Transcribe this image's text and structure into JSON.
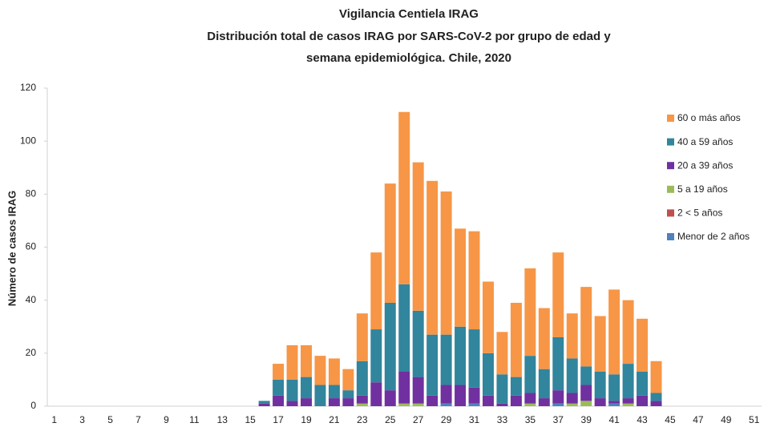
{
  "chart_data": {
    "type": "stacked_bar",
    "title_lines": [
      "Vigilancia Centiela IRAG",
      "Distribución total  de casos IRAG  por SARS-CoV-2 por grupo de edad y",
      "semana epidemiológica.  Chile, 2020"
    ],
    "y_label": "Número de casos IRAG",
    "categories": [
      "1",
      null,
      "3",
      null,
      "5",
      null,
      "7",
      null,
      "9",
      null,
      "11",
      null,
      "13",
      null,
      "15",
      null,
      "17",
      null,
      "19",
      null,
      "21",
      null,
      "23",
      null,
      "25",
      null,
      "27",
      null,
      "29",
      null,
      "31",
      null,
      "33",
      null,
      "35",
      null,
      "37",
      null,
      "39",
      null,
      "41",
      null,
      "43",
      null,
      "45",
      null,
      "47",
      null,
      "49",
      null,
      "51"
    ],
    "series": [
      {
        "name": "Menor de 2 años",
        "color": "#4f81bd",
        "values": [
          0,
          0,
          0,
          0,
          0,
          0,
          0,
          0,
          0,
          0,
          0,
          0,
          0,
          0,
          0,
          0,
          0,
          0,
          0,
          0,
          0,
          0,
          0,
          0,
          0,
          0,
          0,
          0,
          1,
          0,
          1,
          0,
          0,
          0,
          0,
          0,
          1,
          0,
          0,
          0,
          1,
          0,
          0,
          0,
          0,
          0,
          0,
          0,
          0,
          0,
          0
        ]
      },
      {
        "name": "2 < 5 años",
        "color": "#c0504d",
        "values": [
          0,
          0,
          0,
          0,
          0,
          0,
          0,
          0,
          0,
          0,
          0,
          0,
          0,
          0,
          0,
          0,
          0,
          0,
          0,
          0,
          0,
          0,
          0,
          0,
          0,
          0,
          0,
          0,
          0,
          0,
          0,
          0,
          0,
          0,
          0,
          0,
          0,
          0,
          0,
          0,
          0,
          0,
          0,
          0,
          0,
          0,
          0,
          0,
          0,
          0,
          0
        ]
      },
      {
        "name": "5 a 19 años",
        "color": "#9bbb59",
        "values": [
          0,
          0,
          0,
          0,
          0,
          0,
          0,
          0,
          0,
          0,
          0,
          0,
          0,
          0,
          0,
          0,
          0,
          0,
          0,
          0,
          0,
          0,
          1,
          0,
          0,
          1,
          1,
          0,
          0,
          0,
          0,
          0,
          0,
          0,
          1,
          0,
          0,
          1,
          2,
          0,
          0,
          1,
          0,
          0,
          0,
          0,
          0,
          0,
          0,
          0,
          0
        ]
      },
      {
        "name": "20 a 39 años",
        "color": "#7030a0",
        "values": [
          0,
          0,
          0,
          0,
          0,
          0,
          0,
          0,
          0,
          0,
          0,
          0,
          0,
          0,
          0,
          1,
          4,
          2,
          3,
          0,
          3,
          3,
          3,
          9,
          6,
          12,
          10,
          4,
          7,
          8,
          6,
          4,
          1,
          4,
          4,
          3,
          5,
          4,
          6,
          3,
          1,
          2,
          4,
          2,
          0,
          0,
          0,
          0,
          0,
          0,
          0
        ]
      },
      {
        "name": "40 a 59 años",
        "color": "#31859c",
        "values": [
          0,
          0,
          0,
          0,
          0,
          0,
          0,
          0,
          0,
          0,
          0,
          0,
          0,
          0,
          0,
          1,
          6,
          8,
          8,
          8,
          5,
          3,
          13,
          20,
          33,
          33,
          25,
          23,
          19,
          22,
          22,
          16,
          11,
          7,
          14,
          11,
          20,
          13,
          7,
          10,
          10,
          13,
          9,
          3,
          0,
          0,
          0,
          0,
          0,
          0,
          0
        ]
      },
      {
        "name": "60 o más años",
        "color": "#f79646",
        "values": [
          0,
          0,
          0,
          0,
          0,
          0,
          0,
          0,
          0,
          0,
          0,
          0,
          0,
          0,
          0,
          0,
          6,
          13,
          12,
          11,
          10,
          8,
          18,
          29,
          45,
          65,
          56,
          58,
          54,
          37,
          37,
          27,
          16,
          28,
          33,
          23,
          32,
          17,
          30,
          21,
          32,
          24,
          20,
          12,
          0,
          0,
          0,
          0,
          0,
          0,
          0
        ]
      }
    ],
    "ylim": [
      0,
      120
    ],
    "yticks": [
      0,
      20,
      40,
      60,
      80,
      100,
      120
    ]
  }
}
